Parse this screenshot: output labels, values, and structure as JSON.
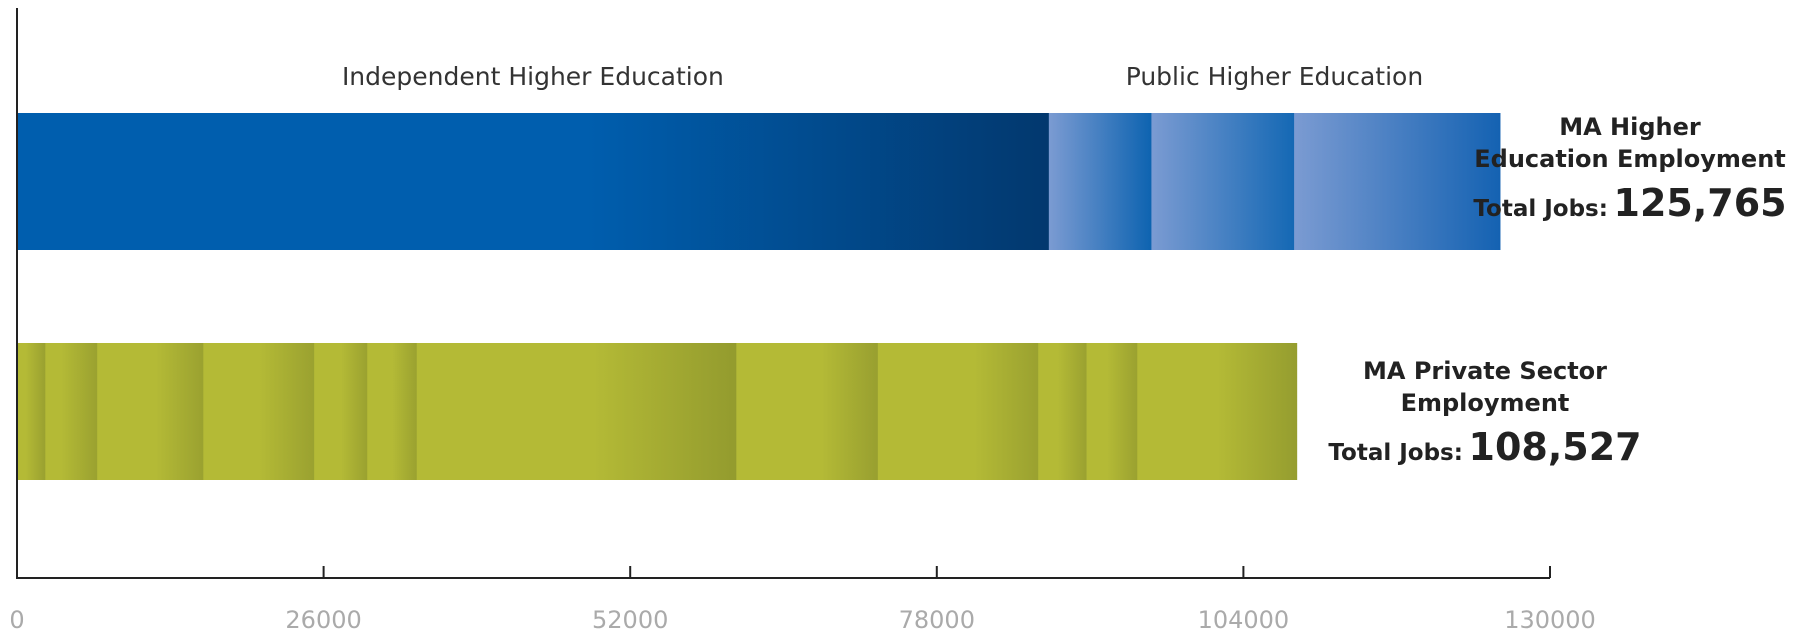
{
  "chart_data": {
    "type": "bar",
    "orientation": "horizontal",
    "stacked": true,
    "xlim": [
      0,
      130000
    ],
    "x_ticks": [
      0,
      26000,
      52000,
      78000,
      104000,
      130000
    ],
    "x_tick_labels": [
      "0",
      "26000",
      "52000",
      "78000",
      "104000",
      "130000"
    ],
    "grid": false,
    "bars": [
      {
        "label_lines": [
          "MA Higher",
          "Education Employment"
        ],
        "total_prefix": "Total Jobs:",
        "total_label": "125,765",
        "total": 125765,
        "color_light": "#7b9bd2",
        "color_dark": "#0a5fad",
        "groups": [
          {
            "label": "Independent Higher Education",
            "start": 0,
            "end": 87500
          },
          {
            "label": "Public Higher Education",
            "start": 87500,
            "end": 125765
          }
        ],
        "segments": [
          {
            "start": 0,
            "end": 87500,
            "color_from": "#005eae",
            "color_to": "#02386e",
            "fade_start": 0.55
          },
          {
            "start": 87500,
            "end": 96200,
            "color_from": "#7b9bd2",
            "color_to": "#0d63b0",
            "fade_start": 0
          },
          {
            "start": 96200,
            "end": 108300,
            "color_from": "#7b9bd2",
            "color_to": "#1468b4",
            "fade_start": 0
          },
          {
            "start": 108300,
            "end": 125765,
            "color_from": "#7b9bd2",
            "color_to": "#1462b2",
            "fade_start": 0
          }
        ]
      },
      {
        "label_lines": [
          "MA Private Sector",
          "Employment"
        ],
        "total_prefix": "Total Jobs:",
        "total_label": "108,527",
        "total": 108527,
        "color_light": "#b4ba36",
        "color_dark": "#939b2e",
        "segments": [
          {
            "start": 0,
            "end": 2400,
            "color_from": "#b4ba36",
            "color_to": "#99a030",
            "fade_start": 0.3
          },
          {
            "start": 2400,
            "end": 6800,
            "color_from": "#b4ba36",
            "color_to": "#9aa130",
            "fade_start": 0.3
          },
          {
            "start": 6800,
            "end": 15800,
            "color_from": "#b4ba36",
            "color_to": "#9aa130",
            "fade_start": 0.55
          },
          {
            "start": 15800,
            "end": 25200,
            "color_from": "#b4ba36",
            "color_to": "#9aa130",
            "fade_start": 0.5
          },
          {
            "start": 25200,
            "end": 29700,
            "color_from": "#b4ba36",
            "color_to": "#9aa130",
            "fade_start": 0.5
          },
          {
            "start": 29700,
            "end": 33900,
            "color_from": "#b4ba36",
            "color_to": "#9aa130",
            "fade_start": 0.5
          },
          {
            "start": 33900,
            "end": 61000,
            "color_from": "#b4ba36",
            "color_to": "#939b2e",
            "fade_start": 0.55
          },
          {
            "start": 61000,
            "end": 73000,
            "color_from": "#b4ba36",
            "color_to": "#989f30",
            "fade_start": 0.6
          },
          {
            "start": 73000,
            "end": 86600,
            "color_from": "#b4ba36",
            "color_to": "#9aa130",
            "fade_start": 0.6
          },
          {
            "start": 86600,
            "end": 90700,
            "color_from": "#b4ba36",
            "color_to": "#9aa130",
            "fade_start": 0.4
          },
          {
            "start": 90700,
            "end": 95000,
            "color_from": "#b4ba36",
            "color_to": "#9aa130",
            "fade_start": 0.4
          },
          {
            "start": 95000,
            "end": 108527,
            "color_from": "#b4ba36",
            "color_to": "#959d2f",
            "fade_start": 0.5
          }
        ]
      }
    ]
  }
}
